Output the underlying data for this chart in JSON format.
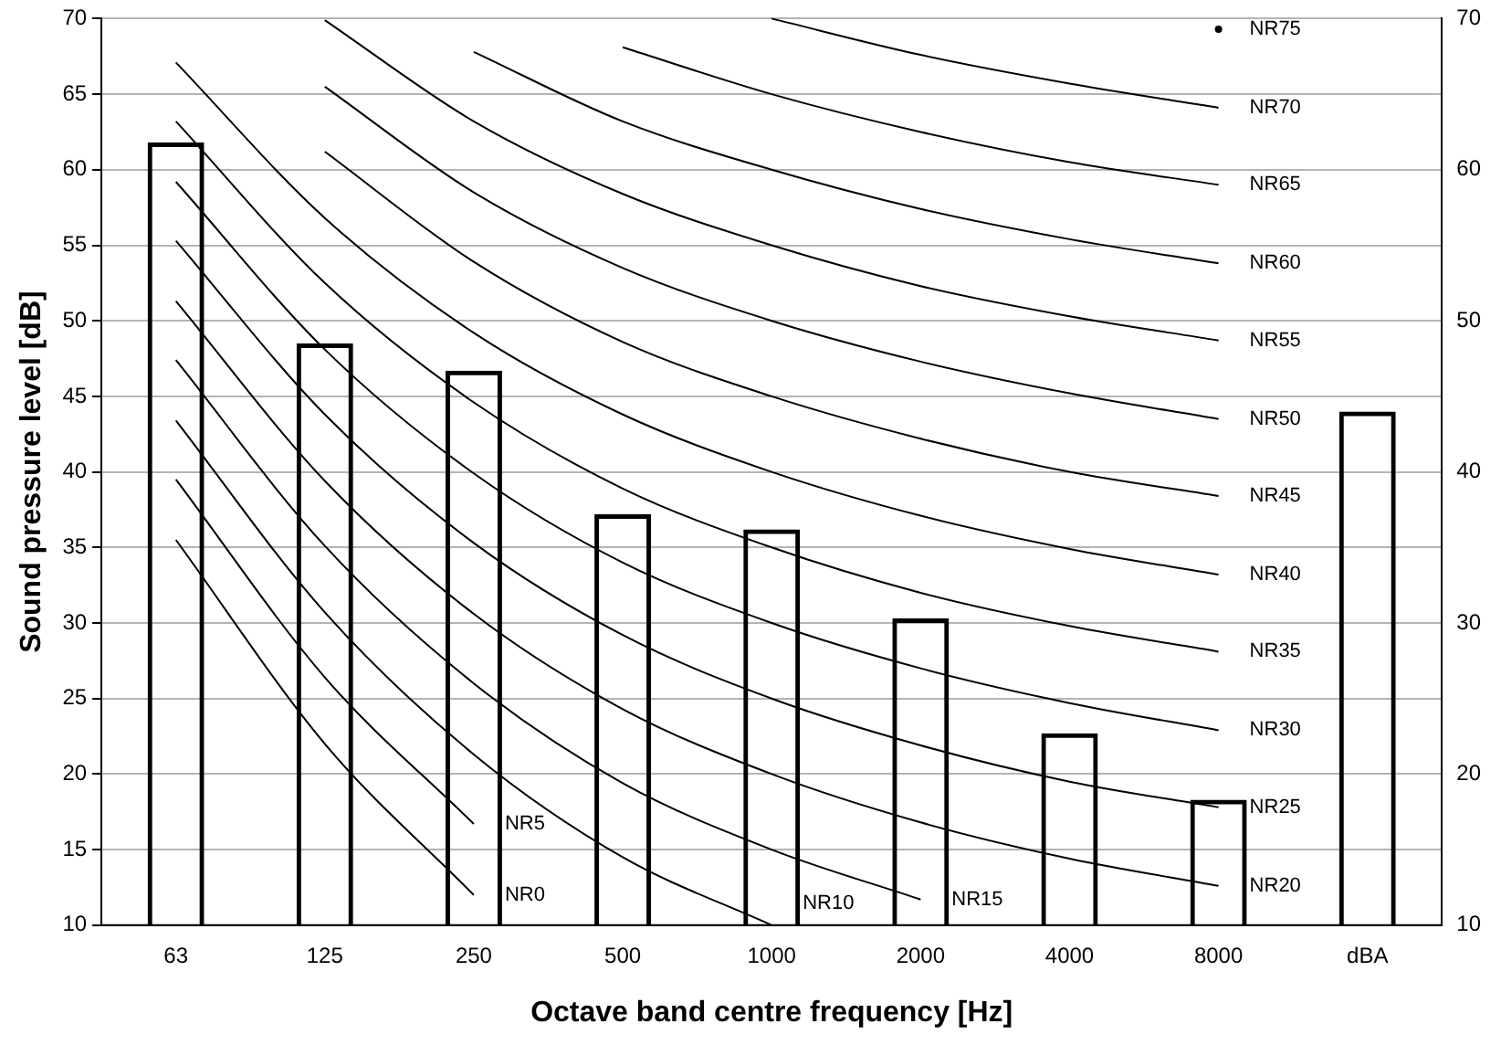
{
  "chart_data": {
    "type": "bar",
    "xlabel": "Octave band centre frequency [Hz]",
    "ylabel": "Sound pressure level [dB]",
    "categories": [
      "63",
      "125",
      "250",
      "500",
      "1000",
      "2000",
      "4000",
      "8000",
      "dBA"
    ],
    "series": [
      {
        "color": "#000000",
        "values": [
          61.8,
          48.5,
          46.7,
          37.2,
          36.2,
          30.3,
          22.7,
          18.3,
          44
        ]
      },
      {
        "type": "line",
        "name": "NR0",
        "color": "#000000",
        "values": [
          35.5,
          22,
          12,
          null,
          null,
          null,
          null,
          null,
          null
        ]
      },
      {
        "type": "line",
        "name": "NR5",
        "color": "#000000",
        "values": [
          39.5,
          26.4,
          16.7,
          null,
          null,
          null,
          null,
          null,
          null
        ]
      },
      {
        "type": "line",
        "name": "NR10",
        "color": "#000000",
        "values": [
          43.4,
          30.7,
          21.3,
          14.5,
          10,
          null,
          null,
          null,
          null
        ]
      },
      {
        "type": "line",
        "name": "NR15",
        "color": "#000000",
        "values": [
          47.4,
          35.1,
          26,
          19.4,
          15,
          11.7,
          null,
          null,
          null
        ]
      },
      {
        "type": "line",
        "name": "NR20",
        "color": "#000000",
        "values": [
          51.3,
          39.4,
          30.6,
          24.3,
          20,
          16.8,
          14.4,
          12.6,
          null
        ]
      },
      {
        "type": "line",
        "name": "NR25",
        "color": "#000000",
        "values": [
          55.3,
          43.8,
          35.3,
          29.2,
          25,
          21.9,
          19.5,
          17.8,
          null
        ]
      },
      {
        "type": "line",
        "name": "NR30",
        "color": "#000000",
        "values": [
          59.2,
          48.1,
          39.9,
          34,
          30,
          27,
          24.7,
          22.9,
          null
        ]
      },
      {
        "type": "line",
        "name": "NR35",
        "color": "#000000",
        "values": [
          63.2,
          52.5,
          44.6,
          38.9,
          35,
          32,
          29.8,
          28.1,
          null
        ]
      },
      {
        "type": "line",
        "name": "NR40",
        "color": "#000000",
        "values": [
          67.1,
          56.8,
          49.2,
          43.8,
          40,
          37.1,
          34.9,
          33.2,
          null
        ]
      },
      {
        "type": "line",
        "name": "NR45",
        "color": "#000000",
        "values": [
          null,
          61.2,
          53.9,
          48.6,
          45,
          42.2,
          40,
          38.4,
          null
        ]
      },
      {
        "type": "line",
        "name": "NR50",
        "color": "#000000",
        "values": [
          null,
          65.5,
          58.5,
          53.5,
          50,
          47.3,
          45.2,
          43.5,
          null
        ]
      },
      {
        "type": "line",
        "name": "NR55",
        "color": "#000000",
        "values": [
          null,
          69.9,
          63.2,
          58.4,
          55,
          52.3,
          50.3,
          48.7,
          null
        ]
      },
      {
        "type": "line",
        "name": "NR60",
        "color": "#000000",
        "values": [
          null,
          null,
          67.8,
          63.2,
          60,
          57.4,
          55.4,
          53.8,
          null
        ]
      },
      {
        "type": "line",
        "name": "NR65",
        "color": "#000000",
        "values": [
          null,
          null,
          null,
          68.1,
          65,
          62.5,
          60.5,
          59,
          null
        ]
      },
      {
        "type": "line",
        "name": "NR70",
        "color": "#000000",
        "values": [
          null,
          null,
          null,
          null,
          70,
          67.6,
          65.7,
          64.1,
          null
        ]
      },
      {
        "type": "line",
        "name": "NR75",
        "color": "#000000",
        "marker": "circle",
        "values": [
          null,
          null,
          null,
          null,
          null,
          null,
          null,
          69.3,
          null
        ]
      }
    ],
    "ylim": [
      10,
      70
    ],
    "yticks": [
      10,
      15,
      20,
      25,
      30,
      35,
      40,
      45,
      50,
      55,
      60,
      65,
      70
    ],
    "y2lim": [
      10,
      70
    ],
    "y2ticks": [
      10,
      20,
      30,
      40,
      50,
      60,
      70
    ],
    "grid": "y",
    "legend": false,
    "marker": "none",
    "line_style": "solid"
  }
}
